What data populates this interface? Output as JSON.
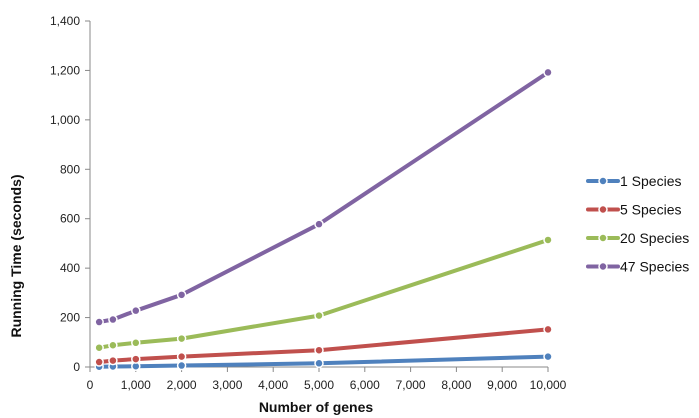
{
  "chart_data": {
    "type": "line",
    "title": "",
    "xlabel": "Number of genes",
    "ylabel": "Running Time (seconds)",
    "xlim": [
      0,
      10000
    ],
    "ylim": [
      0,
      1400
    ],
    "x_ticks": [
      0,
      1000,
      2000,
      3000,
      4000,
      5000,
      6000,
      7000,
      8000,
      9000,
      10000
    ],
    "x_tick_labels": [
      "0",
      "1,000",
      "2,000",
      "3,000",
      "4,000",
      "5,000",
      "6,000",
      "7,000",
      "8,000",
      "9,000",
      "10,000"
    ],
    "y_ticks": [
      0,
      200,
      400,
      600,
      800,
      1000,
      1200,
      1400
    ],
    "y_tick_labels": [
      "0",
      "200",
      "400",
      "600",
      "800",
      "1,000",
      "1,200",
      "1,400"
    ],
    "grid": false,
    "legend_position": "right",
    "x": [
      200,
      500,
      1000,
      2000,
      5000,
      10000
    ],
    "series": [
      {
        "name": "1 Species",
        "color": "#4f81bd",
        "values": [
          1,
          2,
          3,
          6,
          15,
          42
        ]
      },
      {
        "name": "5 Species",
        "color": "#c0504d",
        "values": [
          20,
          26,
          32,
          42,
          68,
          152
        ]
      },
      {
        "name": "20 Species",
        "color": "#9bbb59",
        "values": [
          78,
          88,
          98,
          115,
          208,
          514
        ]
      },
      {
        "name": "47 Species",
        "color": "#8064a2",
        "values": [
          182,
          192,
          228,
          292,
          578,
          1192
        ]
      }
    ]
  }
}
